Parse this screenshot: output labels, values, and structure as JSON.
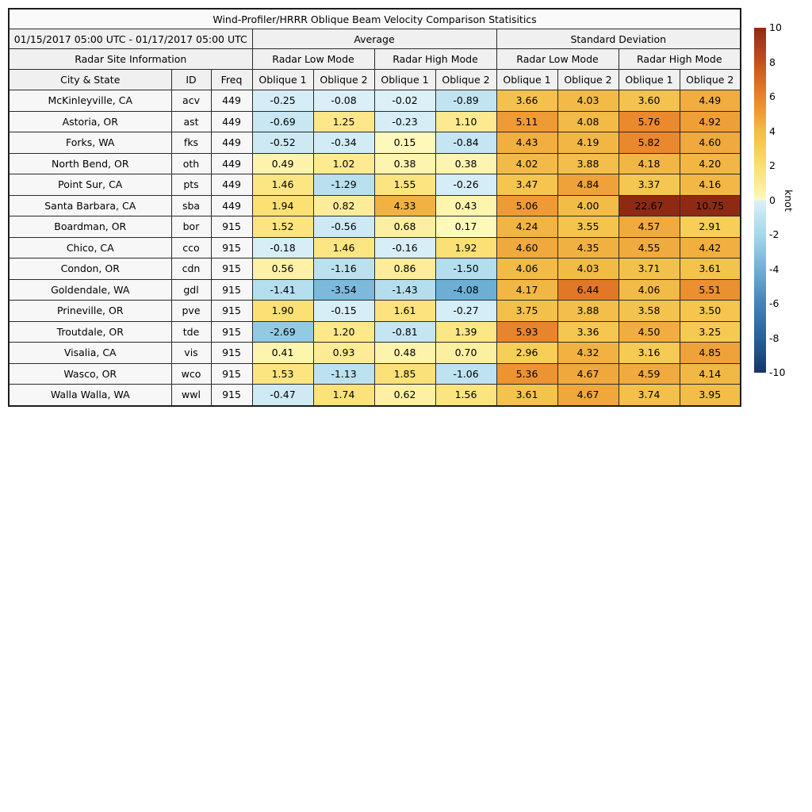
{
  "figure_title": "Wind-Profiler/HRRR Oblique Beam Velocity Comparison Statisitics",
  "table": {
    "date_range": "01/15/2017 05:00 UTC - 01/17/2017 05:00 UTC",
    "group_average": "Average",
    "group_std": "Standard Deviation",
    "site_info_header": "Radar Site Information",
    "mode_low": "Radar Low Mode",
    "mode_high": "Radar High Mode",
    "col_city": "City & State",
    "col_id": "ID",
    "col_freq": "Freq",
    "col_oblique1": "Oblique 1",
    "col_oblique2": "Oblique 2"
  },
  "colorbar": {
    "label": "knot",
    "min": -10,
    "max": 10,
    "ticks": [
      10,
      8,
      6,
      4,
      2,
      0,
      -2,
      -4,
      -6,
      -8,
      -10
    ],
    "gradient_stops": [
      [
        -10,
        "#163764"
      ],
      [
        -8,
        "#27609f"
      ],
      [
        -6,
        "#4184bc"
      ],
      [
        -4,
        "#6fb0d6"
      ],
      [
        -2,
        "#a6d8ea"
      ],
      [
        -1,
        "#bfe3f0"
      ],
      [
        -0.01,
        "#dcf0f8"
      ],
      [
        0.01,
        "#fefac1"
      ],
      [
        0.4,
        "#fdf4ae"
      ],
      [
        1,
        "#fdea92"
      ],
      [
        2,
        "#fbdf72"
      ],
      [
        3,
        "#f7cd55"
      ],
      [
        4,
        "#f2bc47"
      ],
      [
        5,
        "#ef9d36"
      ],
      [
        6,
        "#e8832b"
      ],
      [
        8,
        "#c4511e"
      ],
      [
        10,
        "#8e2a14"
      ]
    ]
  },
  "chart_data": {
    "type": "heatmap",
    "title": "Wind-Profiler/HRRR Oblique Beam Velocity Comparison Statisitics",
    "unit": "knot",
    "color_range": [
      -10,
      10
    ],
    "value_columns": [
      "average_low_oblique1",
      "average_low_oblique2",
      "average_high_oblique1",
      "average_high_oblique2",
      "std_low_oblique1",
      "std_low_oblique2",
      "std_high_oblique1",
      "std_high_oblique2"
    ],
    "rows": [
      {
        "city": "McKinleyville, CA",
        "id": "acv",
        "freq": "449",
        "values": [
          -0.25,
          -0.08,
          -0.02,
          -0.89,
          3.66,
          4.03,
          3.6,
          4.49
        ]
      },
      {
        "city": "Astoria, OR",
        "id": "ast",
        "freq": "449",
        "values": [
          -0.69,
          1.25,
          -0.23,
          1.1,
          5.11,
          4.08,
          5.76,
          4.92
        ]
      },
      {
        "city": "Forks, WA",
        "id": "fks",
        "freq": "449",
        "values": [
          -0.52,
          -0.34,
          0.15,
          -0.84,
          4.43,
          4.19,
          5.82,
          4.6
        ]
      },
      {
        "city": "North Bend, OR",
        "id": "oth",
        "freq": "449",
        "values": [
          0.49,
          1.02,
          0.38,
          0.38,
          4.02,
          3.88,
          4.18,
          4.2
        ]
      },
      {
        "city": "Point Sur, CA",
        "id": "pts",
        "freq": "449",
        "values": [
          1.46,
          -1.29,
          1.55,
          -0.26,
          3.47,
          4.84,
          3.37,
          4.16
        ]
      },
      {
        "city": "Santa Barbara, CA",
        "id": "sba",
        "freq": "449",
        "values": [
          1.94,
          0.82,
          4.33,
          0.43,
          5.06,
          4.0,
          22.67,
          10.75
        ]
      },
      {
        "city": "Boardman, OR",
        "id": "bor",
        "freq": "915",
        "values": [
          1.52,
          -0.56,
          0.68,
          0.17,
          4.24,
          3.55,
          4.57,
          2.91
        ]
      },
      {
        "city": "Chico, CA",
        "id": "cco",
        "freq": "915",
        "values": [
          -0.18,
          1.46,
          -0.16,
          1.92,
          4.6,
          4.35,
          4.55,
          4.42
        ]
      },
      {
        "city": "Condon, OR",
        "id": "cdn",
        "freq": "915",
        "values": [
          0.56,
          -1.16,
          0.86,
          -1.5,
          4.06,
          4.03,
          3.71,
          3.61
        ]
      },
      {
        "city": "Goldendale, WA",
        "id": "gdl",
        "freq": "915",
        "values": [
          -1.41,
          -3.54,
          -1.43,
          -4.08,
          4.17,
          6.44,
          4.06,
          5.51
        ]
      },
      {
        "city": "Prineville, OR",
        "id": "pve",
        "freq": "915",
        "values": [
          1.9,
          -0.15,
          1.61,
          -0.27,
          3.75,
          3.88,
          3.58,
          3.5
        ]
      },
      {
        "city": "Troutdale, OR",
        "id": "tde",
        "freq": "915",
        "values": [
          -2.69,
          1.2,
          -0.81,
          1.39,
          5.93,
          3.36,
          4.5,
          3.25
        ]
      },
      {
        "city": "Visalia, CA",
        "id": "vis",
        "freq": "915",
        "values": [
          0.41,
          0.93,
          0.48,
          0.7,
          2.96,
          4.32,
          3.16,
          4.85
        ]
      },
      {
        "city": "Wasco, OR",
        "id": "wco",
        "freq": "915",
        "values": [
          1.53,
          -1.13,
          1.85,
          -1.06,
          5.36,
          4.67,
          4.59,
          4.14
        ]
      },
      {
        "city": "Walla Walla, WA",
        "id": "wwl",
        "freq": "915",
        "values": [
          -0.47,
          1.74,
          0.62,
          1.56,
          3.61,
          4.67,
          3.74,
          3.95
        ]
      }
    ]
  }
}
